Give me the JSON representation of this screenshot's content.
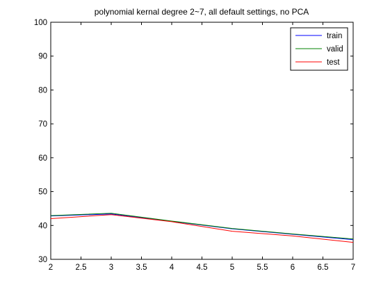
{
  "chart_data": {
    "type": "line",
    "title": "polynomial kernal degree 2~7, all default settings, no PCA",
    "xlabel": "",
    "ylabel": "",
    "xlim": [
      2,
      7
    ],
    "ylim": [
      30,
      100
    ],
    "xticks": [
      "2",
      "2.5",
      "3",
      "3.5",
      "4",
      "4.5",
      "5",
      "5.5",
      "6",
      "6.5",
      "7"
    ],
    "yticks": [
      "30",
      "40",
      "50",
      "60",
      "70",
      "80",
      "90",
      "100"
    ],
    "grid": false,
    "legend_position": "top-right",
    "x": [
      2,
      3,
      4,
      5,
      6,
      7
    ],
    "series": [
      {
        "name": "train",
        "color": "#0000ff",
        "values": [
          42.8,
          43.4,
          41.2,
          39.0,
          37.4,
          35.8
        ]
      },
      {
        "name": "valid",
        "color": "#008000",
        "values": [
          42.9,
          43.6,
          41.3,
          39.1,
          37.5,
          36.0
        ]
      },
      {
        "name": "test",
        "color": "#ff0000",
        "values": [
          42.0,
          43.2,
          41.1,
          38.3,
          36.9,
          35.0
        ]
      }
    ]
  }
}
